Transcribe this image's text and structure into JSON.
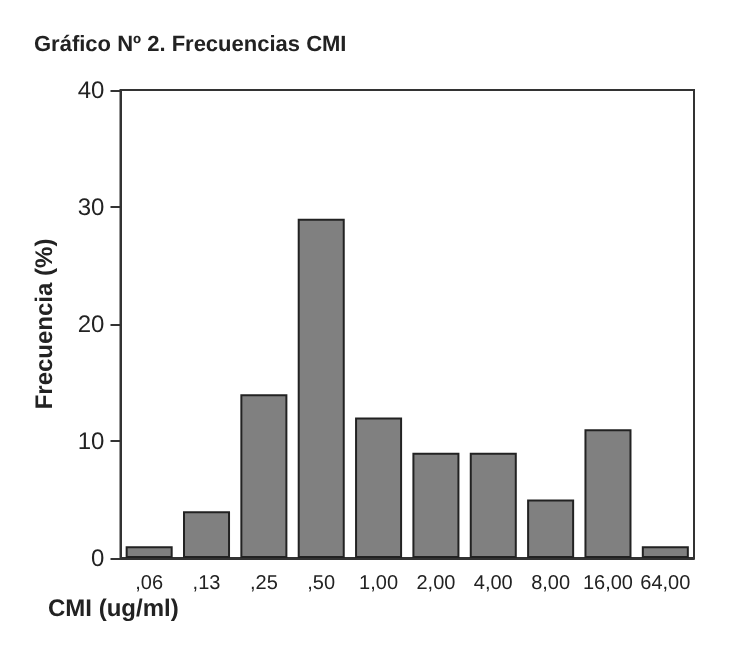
{
  "chart_data": {
    "type": "bar",
    "title": "Gráfico Nº 2. Frecuencias CMI",
    "xlabel": "CMI (ug/ml)",
    "ylabel": "Frecuencia (%)",
    "categories": [
      ",06",
      ",13",
      ",25",
      ",50",
      "1,00",
      "2,00",
      "4,00",
      "8,00",
      "16,00",
      "64,00"
    ],
    "values": [
      1,
      4,
      14,
      29,
      12,
      9,
      9,
      5,
      11,
      1
    ],
    "color": "#808080",
    "ylim": [
      0,
      40
    ],
    "yticks": [
      0,
      10,
      20,
      30,
      40
    ],
    "grid": false
  }
}
